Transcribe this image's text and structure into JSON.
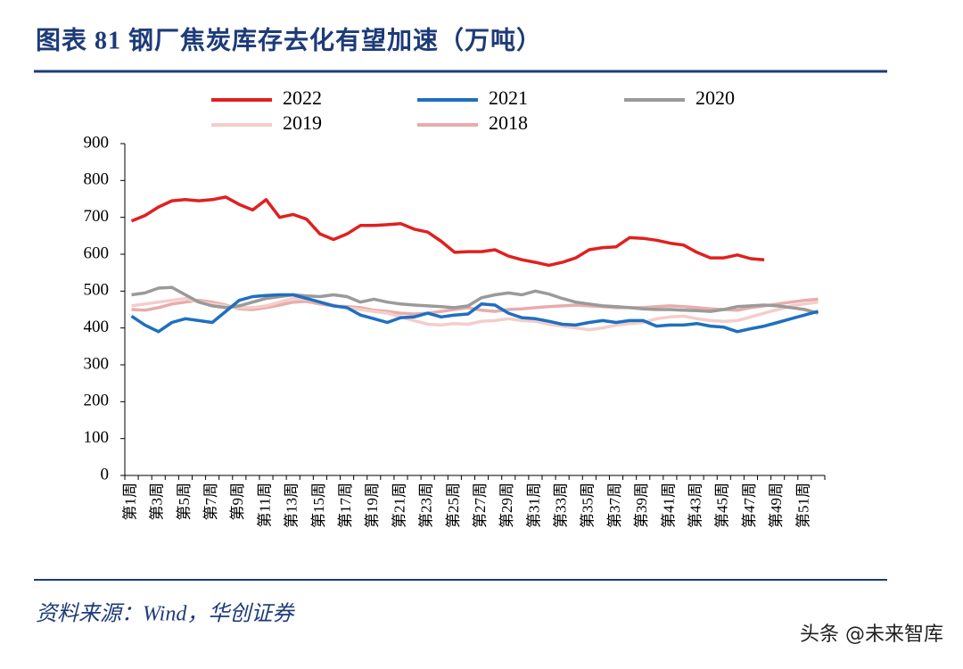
{
  "chart_data": {
    "type": "line",
    "title": "图表 81  钢厂焦炭库存去化有望加速（万吨）",
    "categories": [
      "第1周",
      null,
      "第3周",
      null,
      "第5周",
      null,
      "第7周",
      null,
      "第9周",
      null,
      "第11周",
      null,
      "第13周",
      null,
      "第15周",
      null,
      "第17周",
      null,
      "第19周",
      null,
      "第21周",
      null,
      "第23周",
      null,
      "第25周",
      null,
      "第27周",
      null,
      "第29周",
      null,
      "第31周",
      null,
      "第33周",
      null,
      "第35周",
      null,
      "第37周",
      null,
      "第39周",
      null,
      "第41周",
      null,
      "第43周",
      null,
      "第45周",
      null,
      "第47周",
      null,
      "第49周",
      null,
      "第51周",
      null
    ],
    "series": [
      {
        "name": "2022",
        "color": "#e02020",
        "values": [
          690,
          705,
          728,
          745,
          748,
          745,
          748,
          755,
          735,
          720,
          748,
          700,
          708,
          695,
          655,
          640,
          655,
          678,
          678,
          680,
          683,
          668,
          660,
          635,
          605,
          607,
          607,
          612,
          595,
          585,
          578,
          570,
          578,
          590,
          612,
          618,
          620,
          645,
          643,
          638,
          630,
          625,
          605,
          590,
          590,
          598,
          588,
          585,
          null,
          null,
          null,
          null
        ]
      },
      {
        "name": "2021",
        "color": "#1f6fc0",
        "values": [
          432,
          408,
          390,
          415,
          425,
          420,
          415,
          445,
          475,
          485,
          488,
          490,
          490,
          480,
          470,
          460,
          455,
          435,
          425,
          415,
          428,
          430,
          440,
          430,
          435,
          438,
          465,
          462,
          440,
          428,
          425,
          418,
          410,
          408,
          415,
          420,
          415,
          420,
          420,
          405,
          408,
          408,
          412,
          405,
          402,
          390,
          398,
          405,
          415,
          425,
          435,
          445
        ]
      },
      {
        "name": "2020",
        "color": "#9a9a9a",
        "values": [
          490,
          495,
          508,
          510,
          490,
          470,
          460,
          455,
          460,
          470,
          480,
          485,
          490,
          487,
          485,
          490,
          485,
          470,
          478,
          470,
          465,
          462,
          460,
          458,
          455,
          460,
          482,
          490,
          495,
          490,
          500,
          492,
          480,
          470,
          465,
          460,
          458,
          455,
          452,
          450,
          450,
          448,
          447,
          445,
          450,
          458,
          460,
          462,
          460,
          455,
          450,
          440
        ]
      },
      {
        "name": "2019",
        "color": "#f4cdca",
        "values": [
          460,
          465,
          470,
          475,
          480,
          470,
          465,
          460,
          455,
          455,
          460,
          470,
          480,
          478,
          470,
          462,
          455,
          450,
          445,
          440,
          430,
          420,
          410,
          408,
          412,
          410,
          418,
          420,
          425,
          420,
          418,
          410,
          405,
          400,
          395,
          400,
          408,
          412,
          415,
          425,
          430,
          432,
          425,
          420,
          418,
          420,
          430,
          440,
          450,
          460,
          465,
          470
        ]
      },
      {
        "name": "2018",
        "color": "#e8acac",
        "values": [
          450,
          448,
          455,
          465,
          470,
          475,
          470,
          462,
          452,
          450,
          455,
          462,
          470,
          472,
          465,
          460,
          458,
          455,
          448,
          445,
          440,
          438,
          440,
          445,
          450,
          455,
          448,
          445,
          450,
          452,
          455,
          458,
          460,
          462,
          460,
          458,
          455,
          455,
          455,
          458,
          460,
          458,
          455,
          452,
          450,
          448,
          455,
          460,
          465,
          470,
          475,
          478
        ]
      }
    ],
    "ylim": [
      0,
      900
    ],
    "yticks": [
      0,
      100,
      200,
      300,
      400,
      500,
      600,
      700,
      800,
      900
    ],
    "grid": false
  },
  "source": "资料来源：Wind，华创证券",
  "watermark": "头条 @未来智库"
}
